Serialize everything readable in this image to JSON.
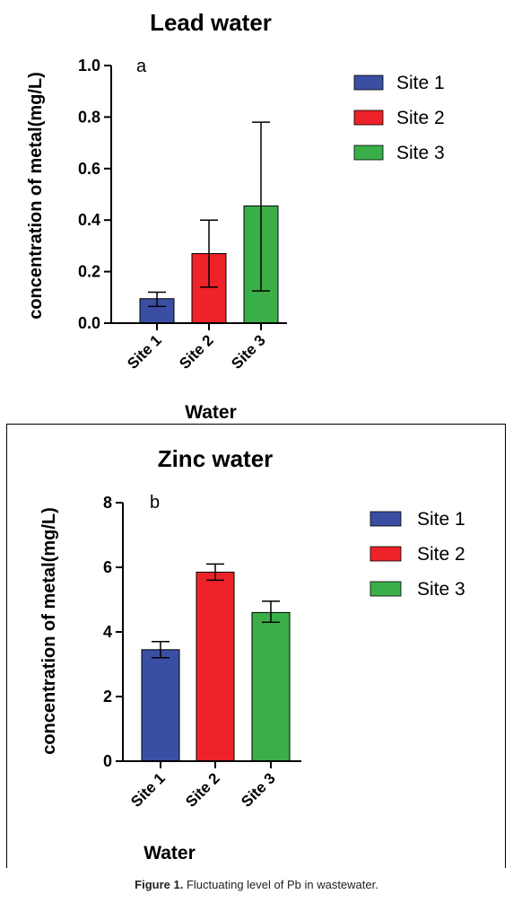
{
  "caption": {
    "label": "Figure 1.",
    "text": "Fluctuating level of Pb in wastewater."
  },
  "chart_data": [
    {
      "type": "bar",
      "title": "Lead water",
      "panel_label": "a",
      "xlabel": "Water",
      "ylabel": "concentration of metal(mg/L)",
      "categories": [
        "Site 1",
        "Site 2",
        "Site 3"
      ],
      "values": [
        0.095,
        0.27,
        0.455
      ],
      "error_low": [
        0.065,
        0.14,
        0.125
      ],
      "error_high": [
        0.12,
        0.4,
        0.78
      ],
      "colors": [
        "#3a4fa3",
        "#ee2229",
        "#3aaf49"
      ],
      "ylim": [
        0,
        1.0
      ],
      "yticks": [
        "0.0",
        "0.2",
        "0.4",
        "0.6",
        "0.8",
        "1.0"
      ],
      "legend": [
        "Site 1",
        "Site 2",
        "Site 3"
      ],
      "legend_position": "top-right",
      "grid": false
    },
    {
      "type": "bar",
      "title": "Zinc water",
      "panel_label": "b",
      "xlabel": "Water",
      "ylabel": "concentration of metal(mg/L)",
      "categories": [
        "Site 1",
        "Site 2",
        "Site 3"
      ],
      "values": [
        3.45,
        5.85,
        4.6
      ],
      "error_low": [
        3.2,
        5.6,
        4.3
      ],
      "error_high": [
        3.7,
        6.1,
        4.95
      ],
      "colors": [
        "#3a4fa3",
        "#ee2229",
        "#3aaf49"
      ],
      "ylim": [
        0,
        8
      ],
      "yticks": [
        "0",
        "2",
        "4",
        "6",
        "8"
      ],
      "legend": [
        "Site 1",
        "Site 2",
        "Site 3"
      ],
      "legend_position": "top-right",
      "grid": false
    }
  ]
}
